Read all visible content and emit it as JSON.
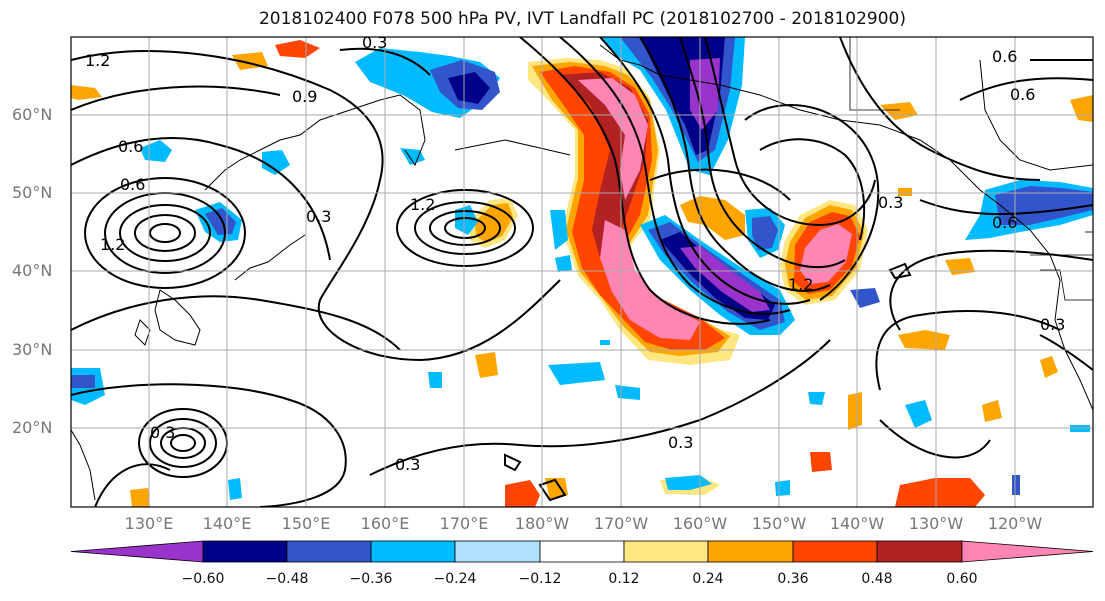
{
  "title": "2018102400 F078 500 hPa PV, IVT Landfall PC (2018102700 - 2018102900)",
  "lat_labels": [
    "60°N",
    "50°N",
    "40°N",
    "30°N",
    "20°N"
  ],
  "lon_labels": [
    "130°E",
    "140°E",
    "150°E",
    "160°E",
    "170°E",
    "180°W",
    "170°W",
    "160°W",
    "150°W",
    "140°W",
    "130°W",
    "120°W"
  ],
  "contour_labels": [
    "1.2",
    "0.3",
    "0.9",
    "0.6",
    "0.6",
    "0.3",
    "1.2",
    "0.3",
    "0.3",
    "0.3",
    "0.6",
    "1.2",
    "0.3",
    "0.6",
    "0.3",
    "1.2",
    "0.6"
  ],
  "colorbar": {
    "tick_labels": [
      "−0.60",
      "−0.48",
      "−0.36",
      "−0.24",
      "−0.12",
      "0.12",
      "0.24",
      "0.36",
      "0.48",
      "0.60"
    ],
    "colors": [
      "#9933cc",
      "#000088",
      "#3355cc",
      "#00bbff",
      "#b0e0ff",
      "#ffffff",
      "#ffe680",
      "#ffa500",
      "#ff4500",
      "#b22222",
      "#ff85b4"
    ]
  }
}
